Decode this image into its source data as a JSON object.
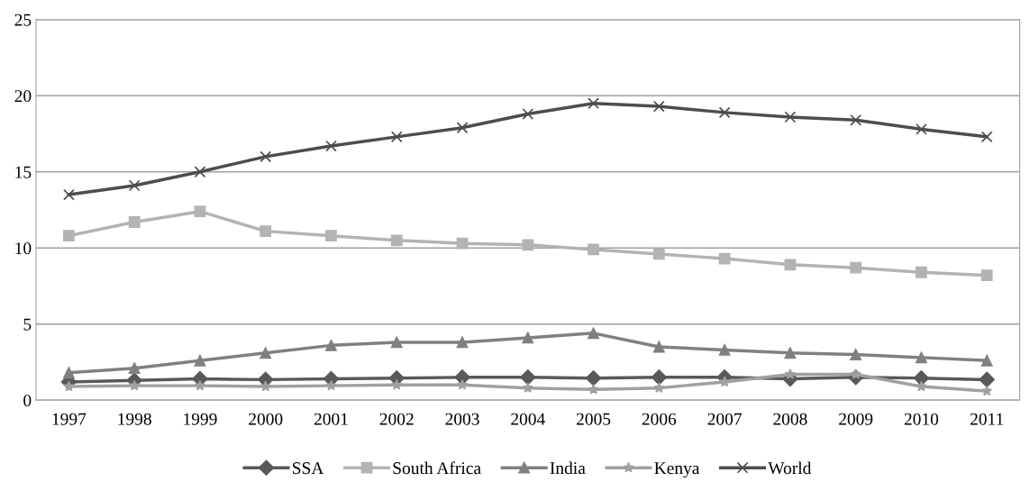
{
  "chart_data": {
    "type": "line",
    "categories": [
      "1997",
      "1998",
      "1999",
      "2000",
      "2001",
      "2002",
      "2003",
      "2004",
      "2005",
      "2006",
      "2007",
      "2008",
      "2009",
      "2010",
      "2011"
    ],
    "series": [
      {
        "name": "SSA",
        "color": "#595959",
        "marker": "diamond",
        "values": [
          1.2,
          1.3,
          1.4,
          1.35,
          1.4,
          1.45,
          1.5,
          1.5,
          1.45,
          1.5,
          1.5,
          1.4,
          1.5,
          1.45,
          1.35
        ]
      },
      {
        "name": "South Africa",
        "color": "#b3b3b3",
        "marker": "square",
        "values": [
          10.8,
          11.7,
          12.4,
          11.1,
          10.8,
          10.5,
          10.3,
          10.2,
          9.9,
          9.6,
          9.3,
          8.9,
          8.7,
          8.4,
          8.2
        ]
      },
      {
        "name": "India",
        "color": "#808080",
        "marker": "triangle",
        "values": [
          1.8,
          2.1,
          2.6,
          3.1,
          3.6,
          3.8,
          3.8,
          4.1,
          4.4,
          3.5,
          3.3,
          3.1,
          3.0,
          2.8,
          2.6
        ]
      },
      {
        "name": "Kenya",
        "color": "#a0a0a0",
        "marker": "star",
        "values": [
          0.9,
          0.95,
          0.95,
          0.9,
          0.95,
          1.0,
          1.0,
          0.8,
          0.7,
          0.8,
          1.2,
          1.7,
          1.7,
          0.9,
          0.6
        ]
      },
      {
        "name": "World",
        "color": "#4d4d4d",
        "marker": "cross",
        "values": [
          13.5,
          14.1,
          15.0,
          16.0,
          16.7,
          17.3,
          17.9,
          18.8,
          19.5,
          19.3,
          18.9,
          18.6,
          18.4,
          17.8,
          17.3
        ]
      }
    ],
    "ylim": [
      0,
      25
    ],
    "yticks": [
      0,
      5,
      10,
      15,
      20,
      25
    ],
    "grid": "y",
    "legend": "bottom",
    "line_style": "solid"
  }
}
